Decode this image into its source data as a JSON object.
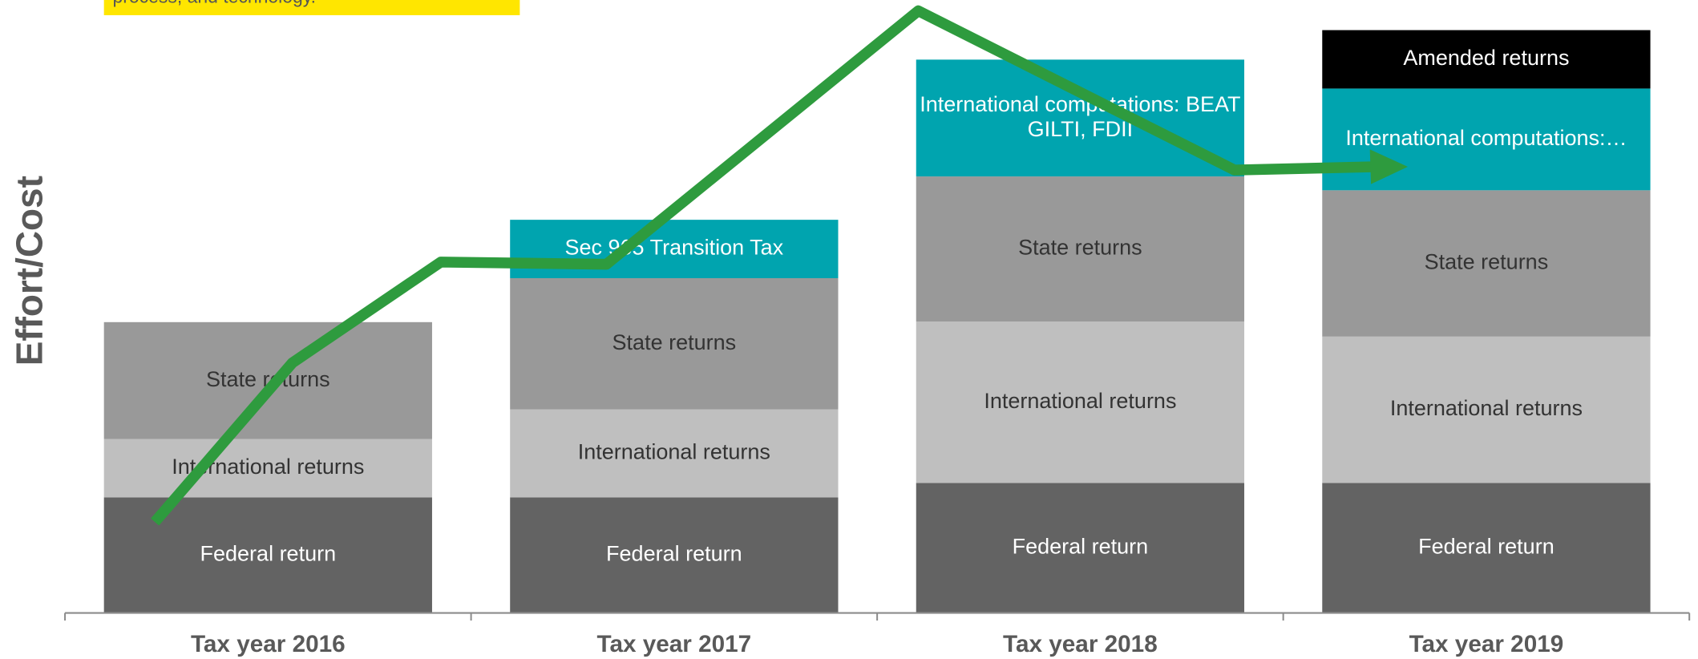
{
  "chart_data": {
    "type": "stacked-bar",
    "y_axis_label": "Effort/Cost",
    "note": "process, and technology.",
    "categories": [
      "Tax year 2016",
      "Tax year 2017",
      "Tax year 2018",
      "Tax year 2019"
    ],
    "ylim": [
      0,
      100
    ],
    "series": [
      {
        "color": "#636363",
        "text_color": "#ffffff",
        "values": [
          19.2,
          19.2,
          21.6,
          21.6
        ],
        "labels": [
          "Federal return",
          "Federal return",
          "Federal return",
          "Federal return"
        ]
      },
      {
        "color": "#bfbfbf",
        "text_color": "#333333",
        "values": [
          9.7,
          14.6,
          26.8,
          24.3
        ],
        "labels": [
          "International returns",
          "International returns",
          "International returns",
          "International returns"
        ]
      },
      {
        "color": "#999999",
        "text_color": "#333333",
        "values": [
          19.4,
          21.8,
          24.1,
          24.3
        ],
        "labels": [
          "State returns",
          "State returns",
          "State returns",
          "State returns"
        ]
      },
      {
        "color": "#00a4af",
        "text_color": "#ffffff",
        "values": [
          null,
          9.7,
          19.4,
          16.9
        ],
        "labels": [
          null,
          "Sec 965 Transition Tax",
          [
            "International computations: BEAT",
            "GILTI, FDII"
          ],
          "International computations:…"
        ]
      },
      {
        "color": "#000000",
        "text_color": "#ffffff",
        "values": [
          null,
          null,
          null,
          9.7
        ],
        "labels": [
          null,
          null,
          null,
          "Amended returns"
        ]
      }
    ]
  }
}
